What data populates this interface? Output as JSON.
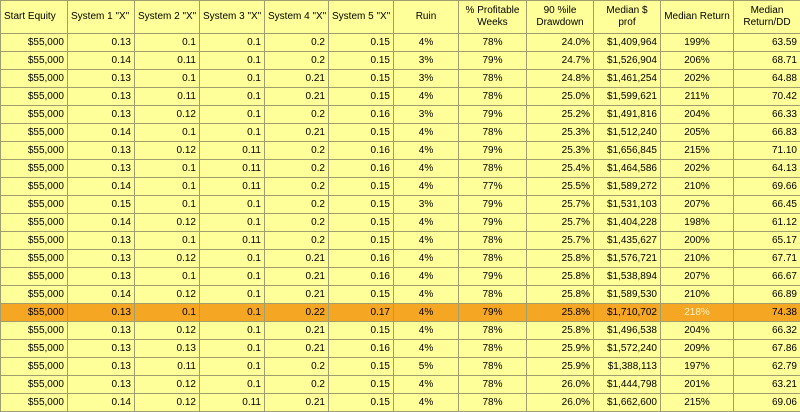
{
  "headers": [
    "Start Equity",
    "System 1 \"X\"",
    "System 2 \"X\"",
    "System 3 \"X\"",
    "System 4 \"X\"",
    "System 5 \"X\"",
    "Ruin",
    "% Profitable Weeks",
    "90 %ile Drawdown",
    "Median $ prof",
    "Median Return",
    "Median Return/DD"
  ],
  "rows": [
    [
      "$55,000",
      "0.13",
      "0.1",
      "0.1",
      "0.2",
      "0.15",
      "4%",
      "78%",
      "24.0%",
      "$1,409,964",
      "199%",
      "63.59"
    ],
    [
      "$55,000",
      "0.14",
      "0.11",
      "0.1",
      "0.2",
      "0.15",
      "3%",
      "79%",
      "24.7%",
      "$1,526,904",
      "206%",
      "68.71"
    ],
    [
      "$55,000",
      "0.13",
      "0.1",
      "0.1",
      "0.21",
      "0.15",
      "3%",
      "78%",
      "24.8%",
      "$1,461,254",
      "202%",
      "64.88"
    ],
    [
      "$55,000",
      "0.13",
      "0.11",
      "0.1",
      "0.21",
      "0.15",
      "4%",
      "78%",
      "25.0%",
      "$1,599,621",
      "211%",
      "70.42"
    ],
    [
      "$55,000",
      "0.13",
      "0.12",
      "0.1",
      "0.2",
      "0.16",
      "3%",
      "79%",
      "25.2%",
      "$1,491,816",
      "204%",
      "66.33"
    ],
    [
      "$55,000",
      "0.14",
      "0.1",
      "0.1",
      "0.21",
      "0.15",
      "4%",
      "78%",
      "25.3%",
      "$1,512,240",
      "205%",
      "66.83"
    ],
    [
      "$55,000",
      "0.13",
      "0.12",
      "0.11",
      "0.2",
      "0.16",
      "4%",
      "79%",
      "25.3%",
      "$1,656,845",
      "215%",
      "71.10"
    ],
    [
      "$55,000",
      "0.13",
      "0.1",
      "0.11",
      "0.2",
      "0.16",
      "4%",
      "78%",
      "25.4%",
      "$1,464,586",
      "202%",
      "64.13"
    ],
    [
      "$55,000",
      "0.14",
      "0.1",
      "0.11",
      "0.2",
      "0.15",
      "4%",
      "77%",
      "25.5%",
      "$1,589,272",
      "210%",
      "69.66"
    ],
    [
      "$55,000",
      "0.15",
      "0.1",
      "0.1",
      "0.2",
      "0.15",
      "3%",
      "79%",
      "25.7%",
      "$1,531,103",
      "207%",
      "66.45"
    ],
    [
      "$55,000",
      "0.14",
      "0.12",
      "0.1",
      "0.2",
      "0.15",
      "4%",
      "79%",
      "25.7%",
      "$1,404,228",
      "198%",
      "61.12"
    ],
    [
      "$55,000",
      "0.13",
      "0.1",
      "0.11",
      "0.2",
      "0.15",
      "4%",
      "78%",
      "25.7%",
      "$1,435,627",
      "200%",
      "65.17"
    ],
    [
      "$55,000",
      "0.13",
      "0.12",
      "0.1",
      "0.21",
      "0.16",
      "4%",
      "78%",
      "25.8%",
      "$1,576,721",
      "210%",
      "67.71"
    ],
    [
      "$55,000",
      "0.13",
      "0.1",
      "0.1",
      "0.21",
      "0.16",
      "4%",
      "79%",
      "25.8%",
      "$1,538,894",
      "207%",
      "66.67"
    ],
    [
      "$55,000",
      "0.14",
      "0.12",
      "0.1",
      "0.21",
      "0.15",
      "4%",
      "78%",
      "25.8%",
      "$1,589,530",
      "210%",
      "66.89"
    ],
    [
      "$55,000",
      "0.13",
      "0.1",
      "0.1",
      "0.22",
      "0.17",
      "4%",
      "79%",
      "25.8%",
      "$1,710,702",
      "218%",
      "74.38"
    ],
    [
      "$55,000",
      "0.13",
      "0.12",
      "0.1",
      "0.21",
      "0.15",
      "4%",
      "78%",
      "25.8%",
      "$1,496,538",
      "204%",
      "66.32"
    ],
    [
      "$55,000",
      "0.13",
      "0.13",
      "0.1",
      "0.21",
      "0.16",
      "4%",
      "78%",
      "25.9%",
      "$1,572,240",
      "209%",
      "67.86"
    ],
    [
      "$55,000",
      "0.13",
      "0.11",
      "0.1",
      "0.2",
      "0.15",
      "5%",
      "78%",
      "25.9%",
      "$1,388,113",
      "197%",
      "62.79"
    ],
    [
      "$55,000",
      "0.13",
      "0.12",
      "0.1",
      "0.2",
      "0.15",
      "4%",
      "78%",
      "26.0%",
      "$1,444,798",
      "201%",
      "63.21"
    ],
    [
      "$55,000",
      "0.14",
      "0.12",
      "0.11",
      "0.21",
      "0.15",
      "4%",
      "78%",
      "26.0%",
      "$1,662,600",
      "215%",
      "69.06"
    ]
  ],
  "highlight_row_index": 15,
  "colors": {
    "background": "#ffff99",
    "highlight": "#f5a623",
    "grid": "#9e9e6e"
  }
}
